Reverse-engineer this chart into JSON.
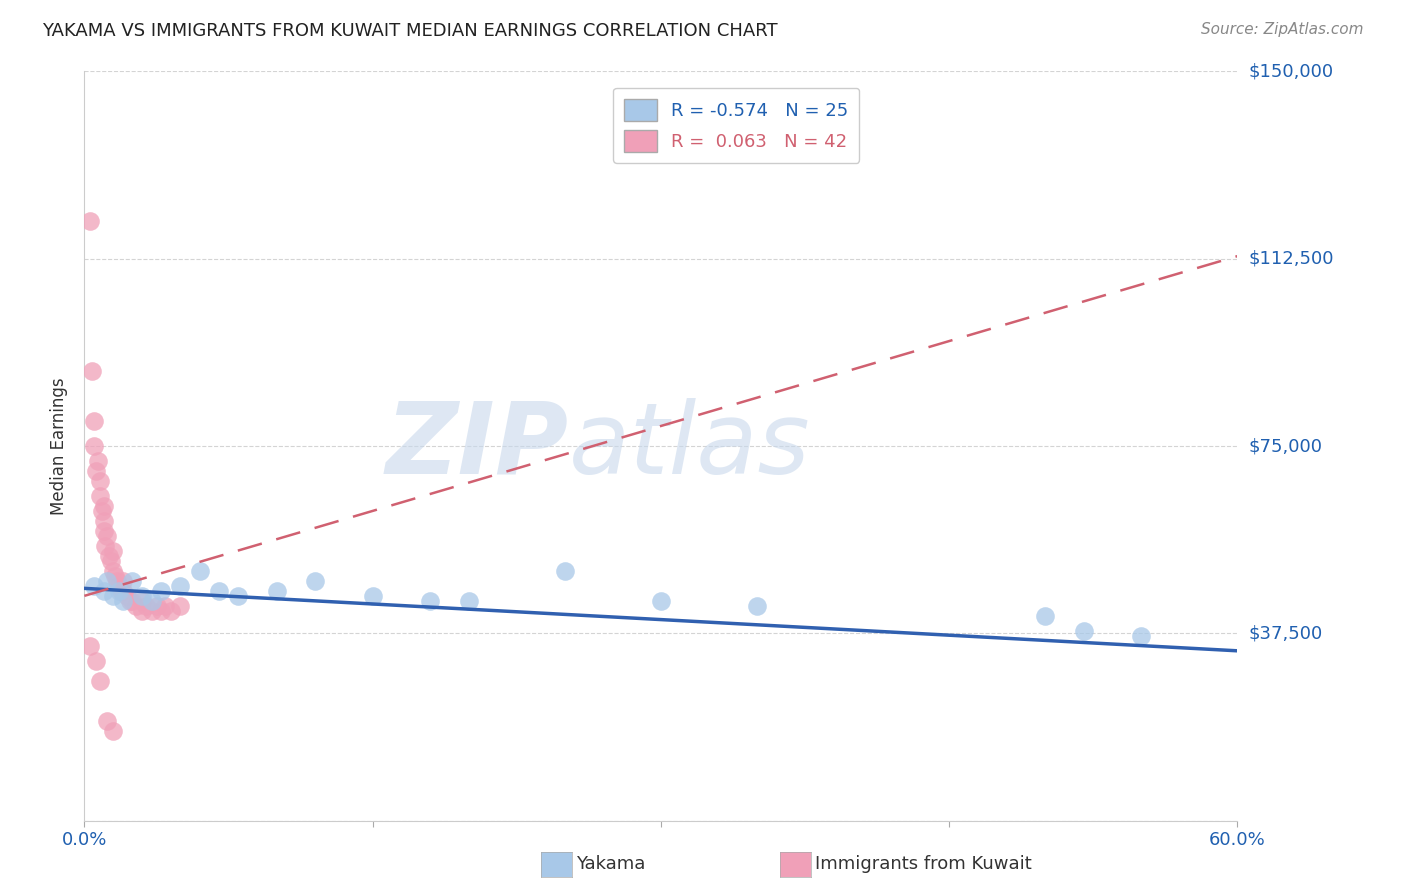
{
  "title": "YAKAMA VS IMMIGRANTS FROM KUWAIT MEDIAN EARNINGS CORRELATION CHART",
  "source": "Source: ZipAtlas.com",
  "xlabel_blue": "Yakama",
  "xlabel_pink": "Immigrants from Kuwait",
  "ylabel": "Median Earnings",
  "watermark_bold": "ZIP",
  "watermark_light": "atlas",
  "xmin": 0.0,
  "xmax": 0.6,
  "ymin": 0,
  "ymax": 150000,
  "yticks": [
    0,
    37500,
    75000,
    112500,
    150000
  ],
  "ytick_labels": [
    "",
    "$37,500",
    "$75,000",
    "$112,500",
    "$150,000"
  ],
  "xticks": [
    0.0,
    0.15,
    0.3,
    0.45,
    0.6
  ],
  "xtick_labels": [
    "0.0%",
    "",
    "",
    "",
    "60.0%"
  ],
  "blue_R": -0.574,
  "blue_N": 25,
  "pink_R": 0.063,
  "pink_N": 42,
  "blue_color": "#a8c8e8",
  "pink_color": "#f0a0b8",
  "blue_line_color": "#3060b0",
  "pink_line_color": "#d06070",
  "blue_scatter_x": [
    0.005,
    0.01,
    0.012,
    0.015,
    0.018,
    0.02,
    0.025,
    0.03,
    0.035,
    0.04,
    0.05,
    0.06,
    0.07,
    0.08,
    0.1,
    0.12,
    0.15,
    0.18,
    0.2,
    0.25,
    0.3,
    0.35,
    0.5,
    0.52,
    0.55
  ],
  "blue_scatter_y": [
    47000,
    46000,
    48000,
    45000,
    46000,
    44000,
    48000,
    45000,
    44000,
    46000,
    47000,
    50000,
    46000,
    45000,
    46000,
    48000,
    45000,
    44000,
    44000,
    50000,
    44000,
    43000,
    41000,
    38000,
    37000
  ],
  "pink_scatter_x": [
    0.003,
    0.004,
    0.005,
    0.005,
    0.006,
    0.007,
    0.008,
    0.008,
    0.009,
    0.01,
    0.01,
    0.01,
    0.011,
    0.012,
    0.013,
    0.014,
    0.015,
    0.015,
    0.016,
    0.017,
    0.018,
    0.019,
    0.02,
    0.02,
    0.022,
    0.024,
    0.025,
    0.027,
    0.03,
    0.03,
    0.032,
    0.035,
    0.038,
    0.04,
    0.042,
    0.045,
    0.05,
    0.003,
    0.006,
    0.008,
    0.012,
    0.015
  ],
  "pink_scatter_y": [
    120000,
    90000,
    75000,
    80000,
    70000,
    72000,
    65000,
    68000,
    62000,
    60000,
    63000,
    58000,
    55000,
    57000,
    53000,
    52000,
    50000,
    54000,
    49000,
    48000,
    47000,
    46000,
    46000,
    48000,
    45000,
    44000,
    44000,
    43000,
    42000,
    44000,
    43000,
    42000,
    43000,
    42000,
    43000,
    42000,
    43000,
    35000,
    32000,
    28000,
    20000,
    18000
  ],
  "blue_trend_x": [
    0.0,
    0.6
  ],
  "blue_trend_y": [
    46500,
    34000
  ],
  "pink_trend_x": [
    0.0,
    0.6
  ],
  "pink_trend_y": [
    45000,
    113000
  ],
  "background_color": "#ffffff",
  "grid_color": "#d0d0d0"
}
